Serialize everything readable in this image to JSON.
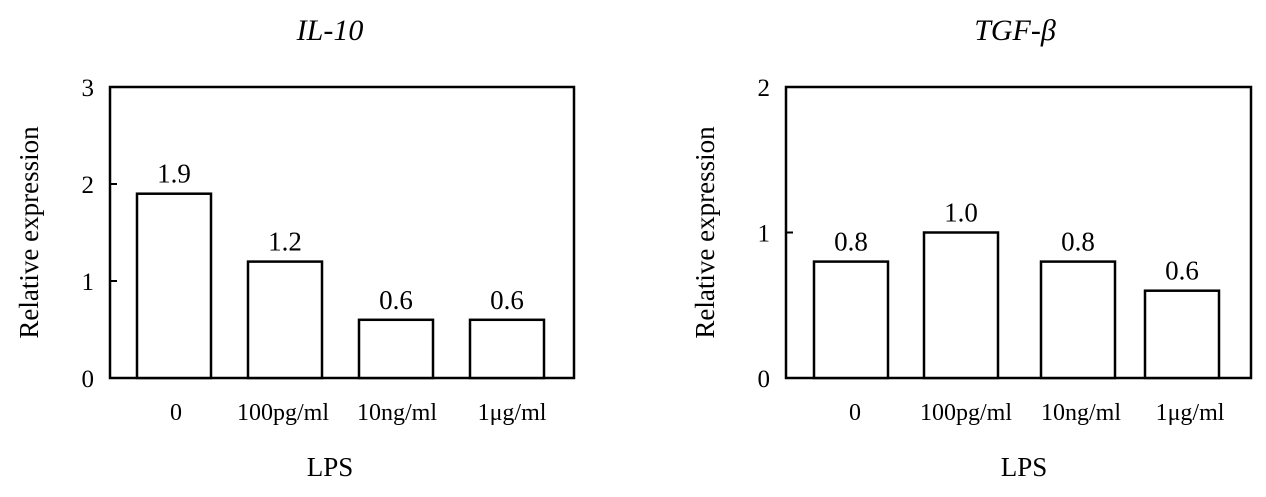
{
  "chart_data": [
    {
      "type": "bar",
      "title": "IL-10",
      "xlabel": "LPS",
      "ylabel": "Relative expression",
      "categories": [
        "0",
        "100pg/ml",
        "10ng/ml",
        "1μg/ml"
      ],
      "values": [
        1.9,
        1.2,
        0.6,
        0.6
      ],
      "data_labels": [
        "1.9",
        "1.2",
        "0.6",
        "0.6"
      ],
      "ylim": [
        0,
        3
      ],
      "yticks": [
        "0",
        "1",
        "2",
        "3"
      ],
      "grid": false,
      "bar_fill": "#ffffff",
      "bar_stroke": "#000000"
    },
    {
      "type": "bar",
      "title": "TGF-β",
      "xlabel": "LPS",
      "ylabel": "Relative expression",
      "categories": [
        "0",
        "100pg/ml",
        "10ng/ml",
        "1μg/ml"
      ],
      "values": [
        0.8,
        1.0,
        0.8,
        0.6
      ],
      "data_labels": [
        "0.8",
        "1.0",
        "0.8",
        "0.6"
      ],
      "ylim": [
        0,
        2
      ],
      "yticks": [
        "0",
        "1",
        "2"
      ],
      "grid": false,
      "bar_fill": "#ffffff",
      "bar_stroke": "#000000"
    }
  ]
}
